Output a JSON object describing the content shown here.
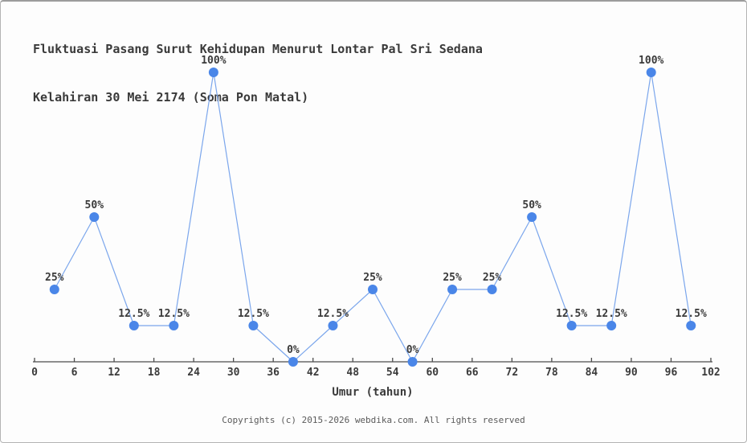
{
  "title": {
    "line1": "Fluktuasi Pasang Surut Kehidupan Menurut Lontar Pal Sri Sedana",
    "line2": "Kelahiran 30 Mei 2174 (Soma Pon Matal)"
  },
  "footer": {
    "text": "Copyrights (c) 2015-2026 webdika.com. All rights reserved"
  },
  "chart_data": {
    "type": "line",
    "title": "Fluktuasi Pasang Surut Kehidupan Menurut Lontar Pal Sri Sedana Kelahiran 30 Mei 2174 (Soma Pon Matal)",
    "xlabel": "Umur (tahun)",
    "ylabel": "",
    "x": [
      3,
      9,
      15,
      21,
      27,
      33,
      39,
      45,
      51,
      57,
      63,
      69,
      75,
      81,
      87,
      93,
      99
    ],
    "values": [
      25,
      50,
      12.5,
      12.5,
      100,
      12.5,
      0,
      12.5,
      25,
      0,
      25,
      25,
      50,
      12.5,
      12.5,
      100,
      12.5
    ],
    "point_labels": [
      "25%",
      "50%",
      "12.5%",
      "12.5%",
      "100%",
      "12.5%",
      "0%",
      "12.5%",
      "25%",
      "0%",
      "25%",
      "25%",
      "50%",
      "12.5%",
      "12.5%",
      "100%",
      "12.5%"
    ],
    "xticks": [
      0,
      6,
      12,
      18,
      24,
      30,
      36,
      42,
      48,
      54,
      60,
      66,
      72,
      78,
      84,
      90,
      96,
      102
    ],
    "xlim": [
      0,
      102
    ],
    "ylim": [
      0,
      100
    ],
    "grid": false,
    "legend": "none",
    "colors": {
      "marker": "#4a86e8",
      "line": "#7ba6ec",
      "axis": "#4d4d4d",
      "text": "#3a3a3a"
    }
  }
}
